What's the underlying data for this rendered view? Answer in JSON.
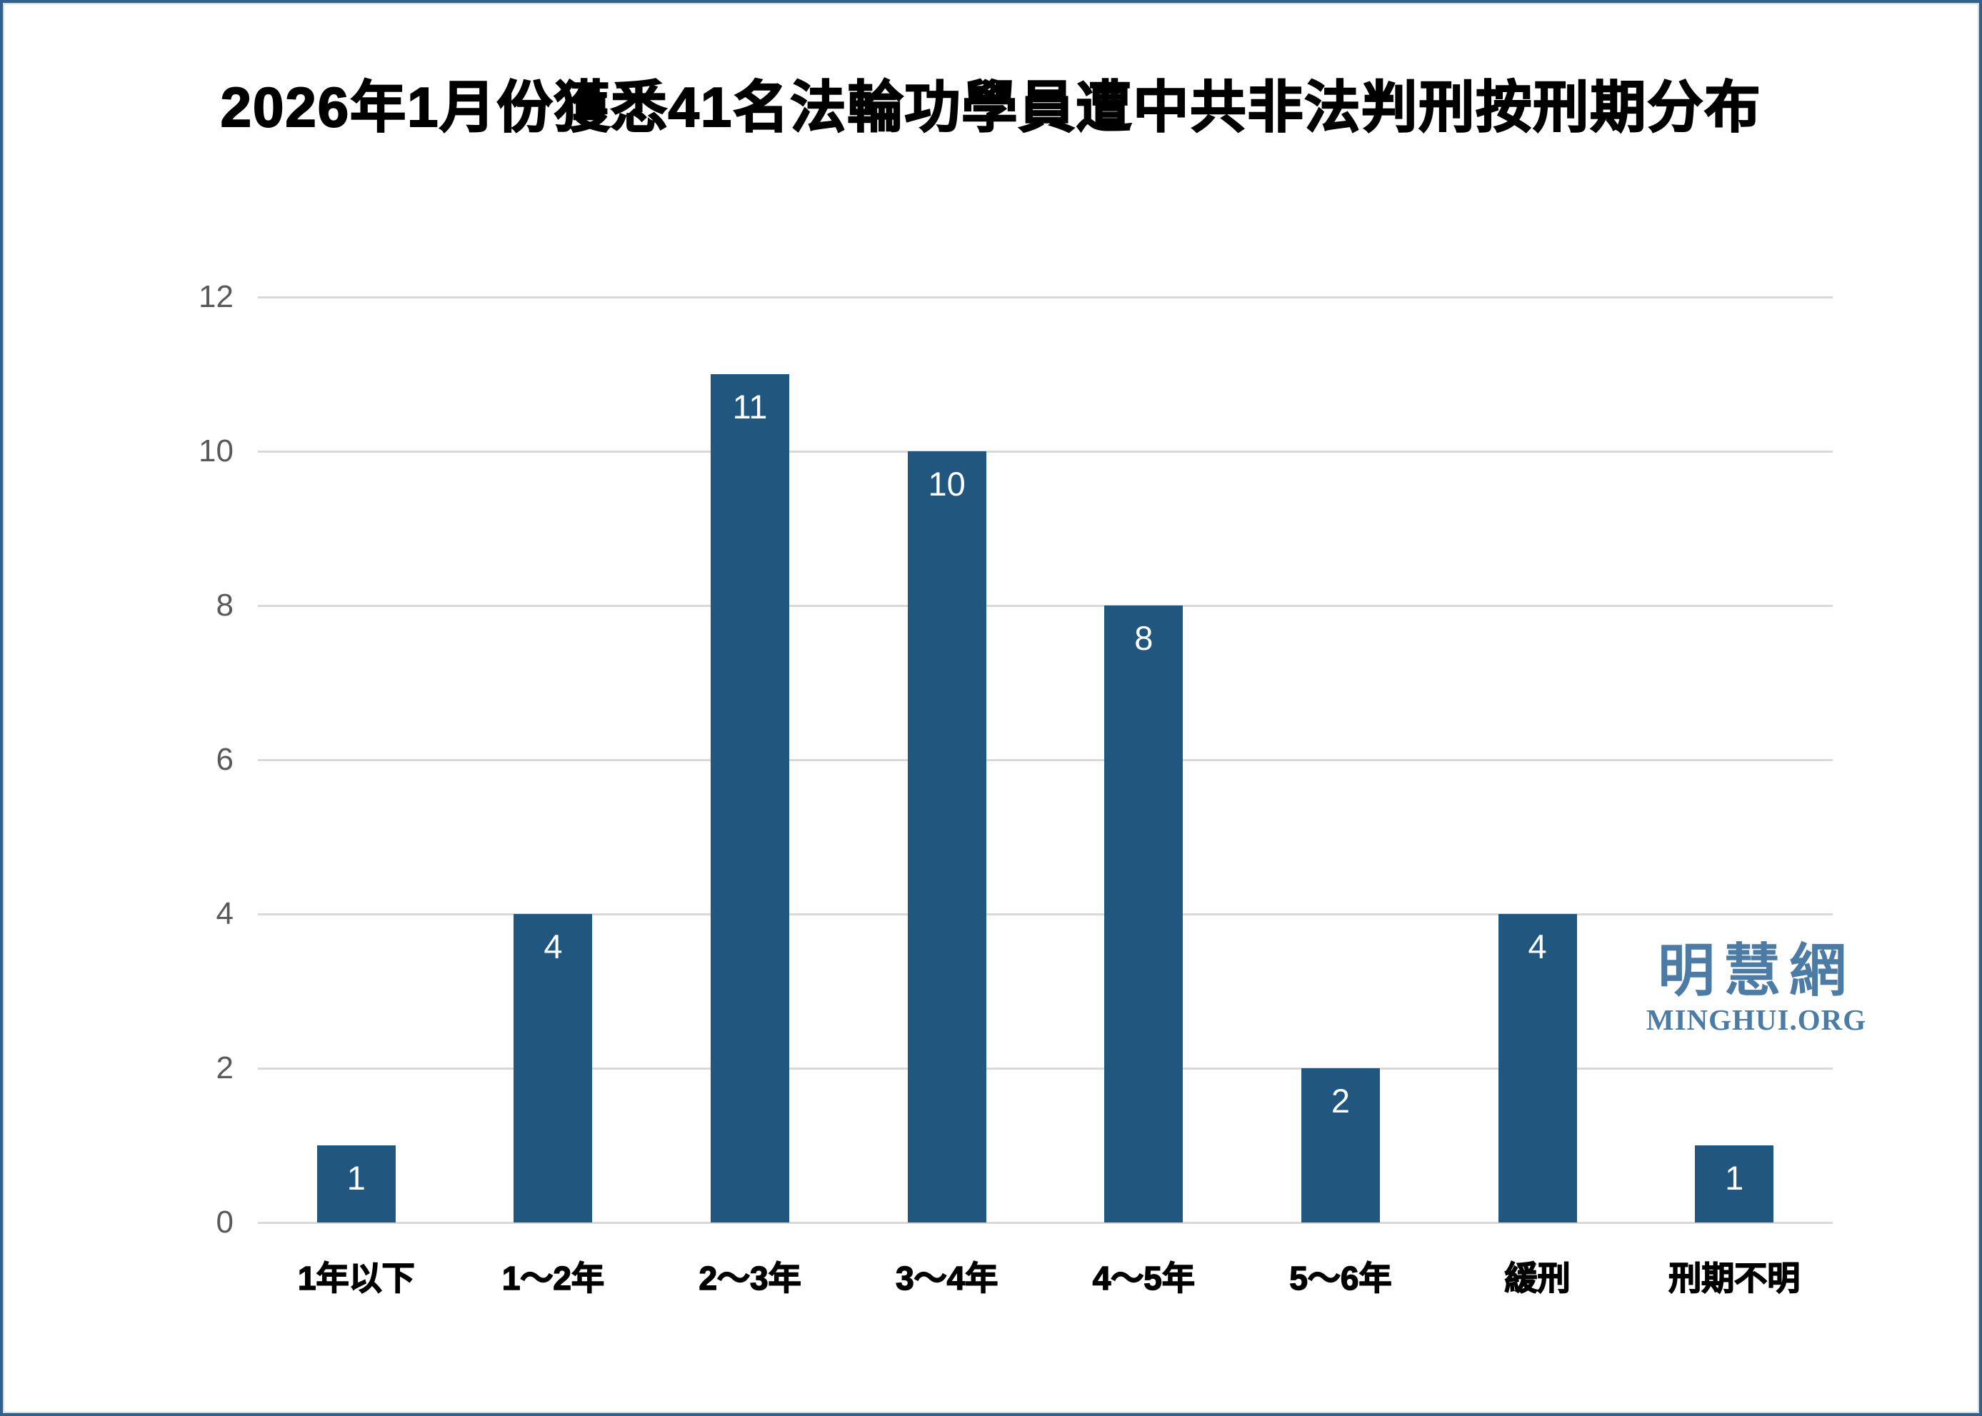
{
  "frame": {
    "border_color": "#2F608E",
    "background": "#FFFFFF"
  },
  "watermark": {
    "cjk": "明慧網",
    "latin": "MINGHUI.ORG",
    "color": "#4C7CA6"
  },
  "chart_data": {
    "type": "bar",
    "title": "2026年1月份獲悉41名法輪功學員遭中共非法判刑按刑期分布",
    "categories": [
      "1年以下",
      "1～2年",
      "2～3年",
      "3～4年",
      "4～5年",
      "5～6年",
      "緩刑",
      "刑期不明"
    ],
    "values": [
      1,
      4,
      11,
      10,
      8,
      2,
      4,
      1
    ],
    "xlabel": "",
    "ylabel": "",
    "ylim": [
      0,
      12
    ],
    "y_ticks": [
      0,
      2,
      4,
      6,
      8,
      10,
      12
    ],
    "grid": true,
    "legend": false,
    "colors": {
      "bar": "#21567E",
      "gridline": "#D9D9D9",
      "tick_label": "#595959",
      "value_label": "#FFFFFF"
    }
  }
}
